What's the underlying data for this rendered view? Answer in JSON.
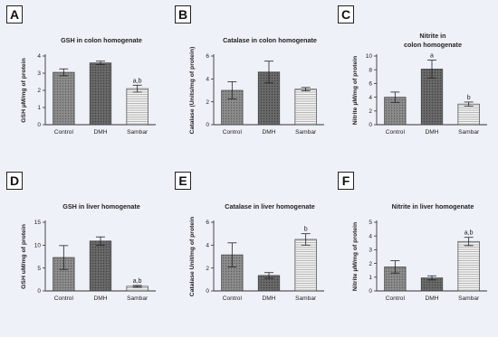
{
  "colors": {
    "background": "#eef1f8",
    "control": "#8c8c8c",
    "dmh": "#6a6a6a",
    "sambar": "#d9d9d9",
    "axis": "#333333"
  },
  "chart_data": [
    {
      "panel": "A",
      "type": "bar",
      "title": "GSH in colon homogenate",
      "ylabel": "GSH µM/mg of protein",
      "categories": [
        "Control",
        "DMH",
        "Sambar"
      ],
      "values": [
        3.05,
        3.6,
        2.1
      ],
      "errors": [
        0.2,
        0.1,
        0.2
      ],
      "annotations": [
        "",
        "",
        "a,b"
      ],
      "ylim": [
        0,
        4
      ],
      "yticks": [
        "0",
        "1",
        "2",
        "3",
        "4"
      ]
    },
    {
      "panel": "B",
      "type": "bar",
      "title": "Catalase in colon homogenate",
      "ylabel": "Catalase (Units/mg of protein)",
      "categories": [
        "Control",
        "DMH",
        "Sambar"
      ],
      "values": [
        3.0,
        4.6,
        3.1
      ],
      "errors": [
        0.75,
        0.95,
        0.15
      ],
      "annotations": [
        "",
        "",
        ""
      ],
      "ylim": [
        0,
        6
      ],
      "yticks": [
        "0",
        "2",
        "4",
        "6"
      ]
    },
    {
      "panel": "C",
      "type": "bar",
      "title": "Nitrite in colon homogenate",
      "ylabel": "Nitrite µM/mg of protein",
      "categories": [
        "Control",
        "DMH",
        "Sambar"
      ],
      "values": [
        4.0,
        8.1,
        3.0
      ],
      "errors": [
        0.75,
        1.3,
        0.3
      ],
      "annotations": [
        "",
        "a",
        "b"
      ],
      "ylim": [
        0,
        10
      ],
      "yticks": [
        "0",
        "2",
        "4",
        "6",
        "8",
        "10"
      ]
    },
    {
      "panel": "D",
      "type": "bar",
      "title": "GSH in liver homogenate",
      "ylabel": "GSH uM/mg of protein",
      "categories": [
        "Control",
        "DMH",
        "Sambar"
      ],
      "values": [
        7.3,
        10.9,
        1.0
      ],
      "errors": [
        2.6,
        0.9,
        0.2
      ],
      "annotations": [
        "",
        "",
        "a,b"
      ],
      "ylim": [
        0,
        15
      ],
      "yticks": [
        "0",
        "5",
        "10",
        "15"
      ]
    },
    {
      "panel": "E",
      "type": "bar",
      "title": "Catalase in liver homogenate",
      "ylabel": "Catalase Unit/mg of protein",
      "categories": [
        "Control",
        "DMH",
        "Sambar"
      ],
      "values": [
        3.15,
        1.35,
        4.5
      ],
      "errors": [
        1.05,
        0.25,
        0.5
      ],
      "annotations": [
        "",
        "",
        "b"
      ],
      "ylim": [
        0,
        6
      ],
      "yticks": [
        "0",
        "2",
        "4",
        "6"
      ]
    },
    {
      "panel": "F",
      "type": "bar",
      "title": "Nitrite in liver homogenate",
      "ylabel": "Nitrite µM/mg of protein",
      "categories": [
        "Control",
        "DMH",
        "Sambar"
      ],
      "values": [
        1.75,
        0.95,
        3.6
      ],
      "errors": [
        0.45,
        0.15,
        0.3
      ],
      "annotations": [
        "",
        "",
        "a,b"
      ],
      "ylim": [
        0,
        5
      ],
      "yticks": [
        "0",
        "1",
        "2",
        "3",
        "4",
        "5"
      ]
    }
  ]
}
